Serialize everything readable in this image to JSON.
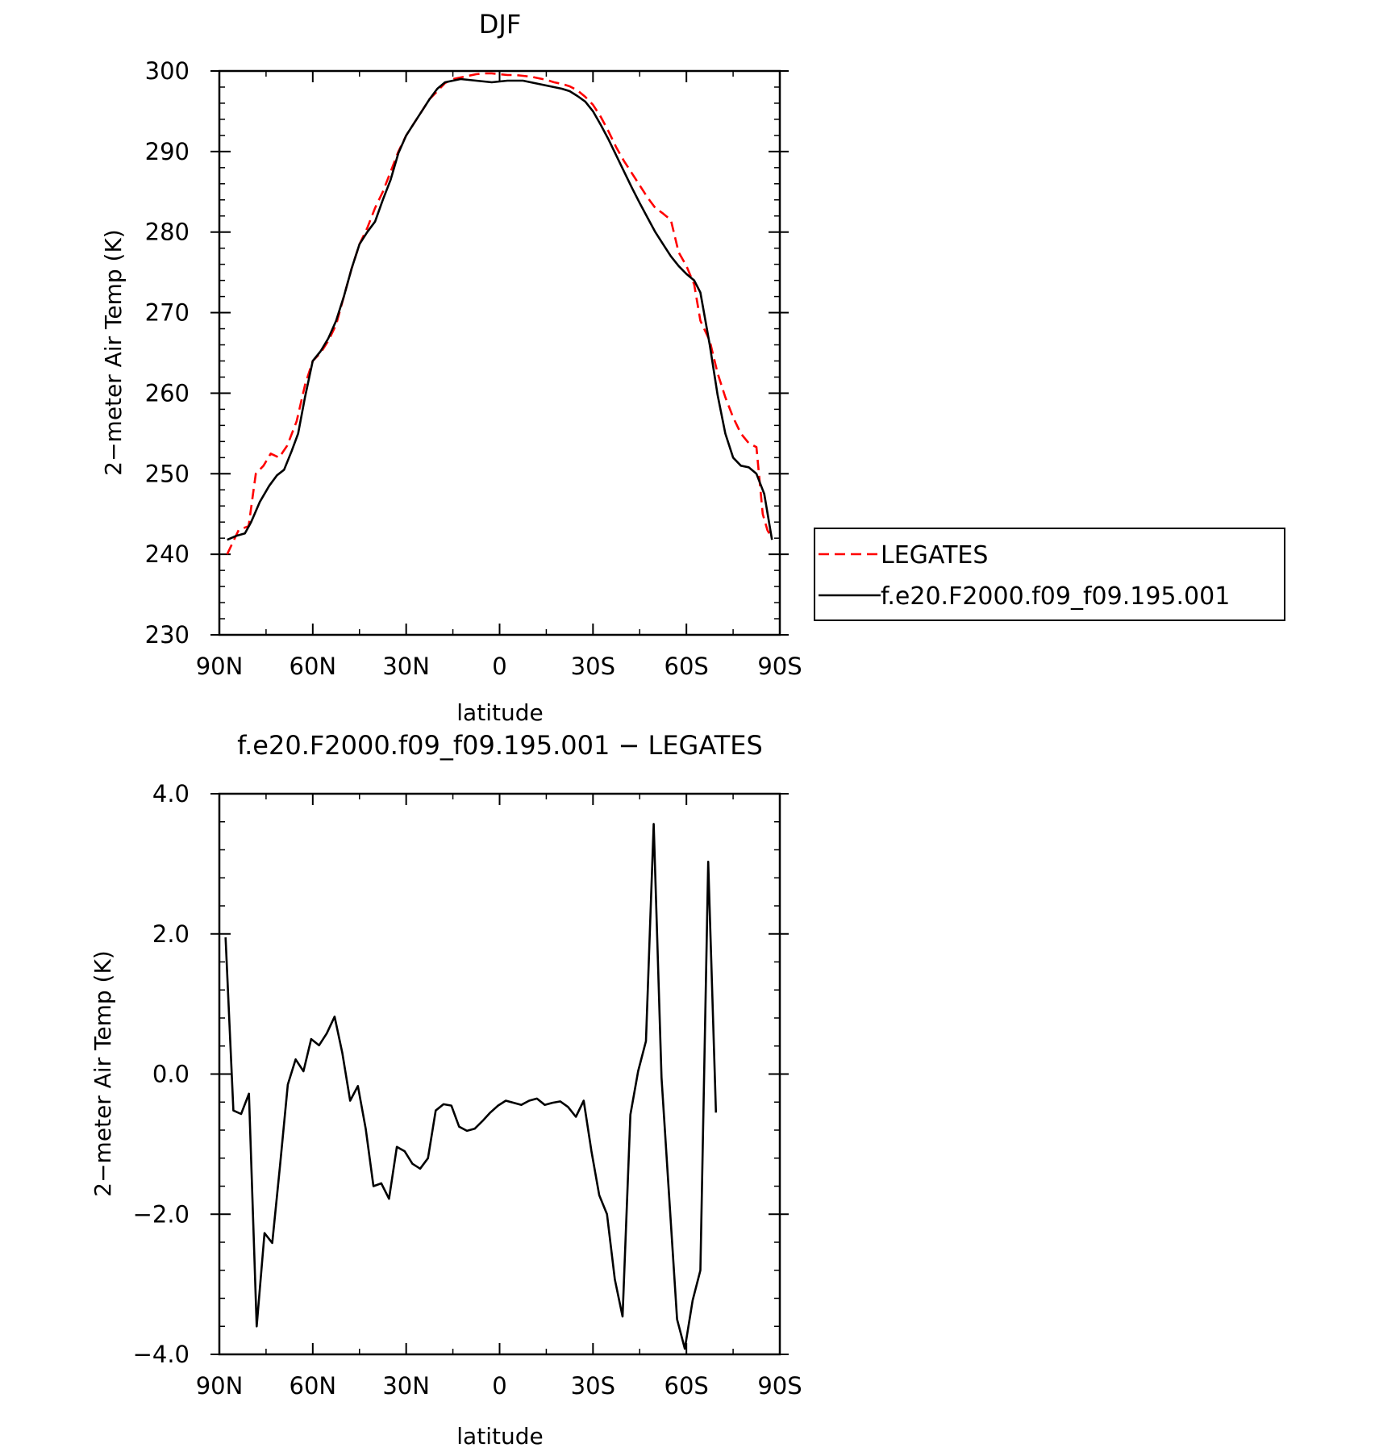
{
  "chart_data": [
    {
      "type": "line",
      "title": "DJF",
      "xlabel": "latitude",
      "ylabel": "2−meter Air Temp (K)",
      "xlim": [
        90,
        -90
      ],
      "ylim": [
        230,
        300
      ],
      "x_tick_values": [
        90,
        60,
        30,
        0,
        -30,
        -60,
        -90
      ],
      "x_tick_labels": [
        "90N",
        "60N",
        "30N",
        "0",
        "30S",
        "60S",
        "90S"
      ],
      "y_tick_values": [
        230,
        240,
        250,
        260,
        270,
        280,
        290,
        300
      ],
      "y_tick_labels": [
        "230",
        "240",
        "250",
        "260",
        "270",
        "280",
        "290",
        "300"
      ],
      "grid": false,
      "legend_position": "right",
      "series": [
        {
          "name": "LEGATES",
          "color": "#ff0000",
          "dash": "dashed",
          "points": [
            [
              87.5,
              240.0
            ],
            [
              83.8,
              243.0
            ],
            [
              80.6,
              243.5
            ],
            [
              78.3,
              250.0
            ],
            [
              75.8,
              251.0
            ],
            [
              73.5,
              252.5
            ],
            [
              70.8,
              252.0
            ],
            [
              68.2,
              253.5
            ],
            [
              65.2,
              256.5
            ],
            [
              62.5,
              261.0
            ],
            [
              60.0,
              264.0
            ],
            [
              57.5,
              265.0
            ],
            [
              55.0,
              266.5
            ],
            [
              52.5,
              268.5
            ],
            [
              50.0,
              272.0
            ],
            [
              47.5,
              275.5
            ],
            [
              45.0,
              278.5
            ],
            [
              42.5,
              280.5
            ],
            [
              40.0,
              283.0
            ],
            [
              37.5,
              285.0
            ],
            [
              35.0,
              287.5
            ],
            [
              32.5,
              290.0
            ],
            [
              30.0,
              292.0
            ],
            [
              27.5,
              293.5
            ],
            [
              25.0,
              295.0
            ],
            [
              22.5,
              296.5
            ],
            [
              20.0,
              297.5
            ],
            [
              17.5,
              298.5
            ],
            [
              15.0,
              299.0
            ],
            [
              12.5,
              299.2
            ],
            [
              10.0,
              299.4
            ],
            [
              7.5,
              299.6
            ],
            [
              5.0,
              299.7
            ],
            [
              2.5,
              299.7
            ],
            [
              0.0,
              299.6
            ],
            [
              -2.5,
              299.5
            ],
            [
              -5.0,
              299.5
            ],
            [
              -7.5,
              299.4
            ],
            [
              -10.0,
              299.3
            ],
            [
              -12.5,
              299.1
            ],
            [
              -15.0,
              298.9
            ],
            [
              -17.5,
              298.6
            ],
            [
              -20.0,
              298.4
            ],
            [
              -22.5,
              298.1
            ],
            [
              -25.0,
              297.6
            ],
            [
              -27.5,
              296.8
            ],
            [
              -30.0,
              295.8
            ],
            [
              -32.5,
              294.3
            ],
            [
              -35.0,
              292.5
            ],
            [
              -37.5,
              290.5
            ],
            [
              -40.0,
              288.8
            ],
            [
              -42.5,
              287.3
            ],
            [
              -45.0,
              285.8
            ],
            [
              -47.5,
              284.3
            ],
            [
              -50.0,
              283.0
            ],
            [
              -52.5,
              282.3
            ],
            [
              -55.0,
              281.5
            ],
            [
              -57.5,
              277.5
            ],
            [
              -60.0,
              275.8
            ],
            [
              -62.5,
              273.5
            ],
            [
              -64.5,
              269.0
            ],
            [
              -67.5,
              266.5
            ],
            [
              -70.0,
              262.5
            ],
            [
              -72.5,
              259.5
            ],
            [
              -75.0,
              257.0
            ],
            [
              -77.5,
              255.0
            ],
            [
              -80.0,
              253.8
            ],
            [
              -82.5,
              253.3
            ],
            [
              -84.5,
              245.0
            ],
            [
              -86.0,
              243.0
            ],
            [
              -87.5,
              242.0
            ]
          ]
        },
        {
          "name": "f.e20.F2000.f09_f09.195.001",
          "color": "#000000",
          "dash": "solid",
          "points": [
            [
              87.5,
              241.8
            ],
            [
              84.5,
              242.3
            ],
            [
              81.8,
              242.6
            ],
            [
              79.8,
              244.0
            ],
            [
              77.0,
              246.5
            ],
            [
              74.0,
              248.5
            ],
            [
              71.5,
              249.8
            ],
            [
              69.2,
              250.5
            ],
            [
              66.8,
              252.8
            ],
            [
              64.7,
              255.0
            ],
            [
              62.5,
              259.5
            ],
            [
              60.0,
              264.0
            ],
            [
              57.5,
              265.2
            ],
            [
              55.0,
              266.8
            ],
            [
              52.5,
              269.0
            ],
            [
              50.0,
              272.0
            ],
            [
              47.5,
              275.5
            ],
            [
              45.0,
              278.5
            ],
            [
              42.5,
              280.0
            ],
            [
              40.0,
              281.3
            ],
            [
              37.5,
              284.0
            ],
            [
              35.0,
              286.5
            ],
            [
              32.5,
              289.8
            ],
            [
              30.0,
              292.0
            ],
            [
              27.5,
              293.5
            ],
            [
              25.0,
              295.0
            ],
            [
              22.5,
              296.5
            ],
            [
              20.0,
              297.8
            ],
            [
              17.5,
              298.6
            ],
            [
              15.0,
              298.8
            ],
            [
              12.5,
              299.0
            ],
            [
              10.0,
              298.9
            ],
            [
              7.5,
              298.8
            ],
            [
              5.0,
              298.7
            ],
            [
              2.5,
              298.6
            ],
            [
              0.0,
              298.7
            ],
            [
              -2.5,
              298.8
            ],
            [
              -5.0,
              298.8
            ],
            [
              -7.5,
              298.8
            ],
            [
              -10.0,
              298.6
            ],
            [
              -12.5,
              298.4
            ],
            [
              -15.0,
              298.2
            ],
            [
              -17.5,
              298.0
            ],
            [
              -20.0,
              297.8
            ],
            [
              -22.5,
              297.5
            ],
            [
              -25.0,
              296.9
            ],
            [
              -27.5,
              296.2
            ],
            [
              -30.0,
              295.0
            ],
            [
              -32.5,
              293.3
            ],
            [
              -35.0,
              291.5
            ],
            [
              -37.5,
              289.5
            ],
            [
              -40.0,
              287.5
            ],
            [
              -42.5,
              285.5
            ],
            [
              -45.0,
              283.6
            ],
            [
              -47.5,
              281.8
            ],
            [
              -50.0,
              280.0
            ],
            [
              -52.5,
              278.5
            ],
            [
              -55.0,
              277.0
            ],
            [
              -57.5,
              275.8
            ],
            [
              -60.0,
              274.8
            ],
            [
              -62.5,
              274.0
            ],
            [
              -64.5,
              272.5
            ],
            [
              -67.5,
              266.0
            ],
            [
              -70.0,
              259.8
            ],
            [
              -72.5,
              255.0
            ],
            [
              -75.0,
              252.0
            ],
            [
              -77.5,
              251.0
            ],
            [
              -80.0,
              250.8
            ],
            [
              -82.5,
              250.0
            ],
            [
              -85.0,
              247.5
            ],
            [
              -87.5,
              241.8
            ]
          ]
        }
      ]
    },
    {
      "type": "line",
      "title": "f.e20.F2000.f09_f09.195.001 − LEGATES",
      "xlabel": "latitude",
      "ylabel": "2−meter Air Temp (K)",
      "xlim": [
        90,
        -90
      ],
      "ylim": [
        -4.0,
        4.0
      ],
      "x_tick_values": [
        90,
        60,
        30,
        0,
        -30,
        -60,
        -90
      ],
      "x_tick_labels": [
        "90N",
        "60N",
        "30N",
        "0",
        "30S",
        "60S",
        "90S"
      ],
      "y_tick_values": [
        -4,
        -2,
        0,
        2,
        4
      ],
      "y_tick_labels": [
        "−4.0",
        "−2.0",
        "0.0",
        "2.0",
        "4.0"
      ],
      "grid": false,
      "series": [
        {
          "color": "#000000",
          "dash": "solid",
          "points": [
            [
              88.0,
              1.95
            ],
            [
              85.5,
              -0.52
            ],
            [
              83.0,
              -0.57
            ],
            [
              80.5,
              -0.28
            ],
            [
              78.0,
              -3.6
            ],
            [
              75.5,
              -2.27
            ],
            [
              73.0,
              -2.41
            ],
            [
              70.5,
              -1.3
            ],
            [
              68.0,
              -0.15
            ],
            [
              65.5,
              0.21
            ],
            [
              63.0,
              0.04
            ],
            [
              60.5,
              0.5
            ],
            [
              58.0,
              0.41
            ],
            [
              55.5,
              0.58
            ],
            [
              53.0,
              0.82
            ],
            [
              50.5,
              0.3
            ],
            [
              48.0,
              -0.38
            ],
            [
              45.5,
              -0.17
            ],
            [
              43.0,
              -0.78
            ],
            [
              40.5,
              -1.6
            ],
            [
              38.0,
              -1.56
            ],
            [
              35.5,
              -1.78
            ],
            [
              33.0,
              -1.04
            ],
            [
              30.5,
              -1.1
            ],
            [
              28.0,
              -1.28
            ],
            [
              25.5,
              -1.35
            ],
            [
              23.0,
              -1.2
            ],
            [
              20.5,
              -0.52
            ],
            [
              18.0,
              -0.43
            ],
            [
              15.5,
              -0.45
            ],
            [
              13.0,
              -0.75
            ],
            [
              10.5,
              -0.81
            ],
            [
              8.0,
              -0.78
            ],
            [
              5.5,
              -0.67
            ],
            [
              3.0,
              -0.55
            ],
            [
              0.5,
              -0.45
            ],
            [
              -2.0,
              -0.38
            ],
            [
              -4.5,
              -0.41
            ],
            [
              -7.0,
              -0.44
            ],
            [
              -9.5,
              -0.38
            ],
            [
              -12.0,
              -0.35
            ],
            [
              -14.5,
              -0.44
            ],
            [
              -17.0,
              -0.41
            ],
            [
              -19.5,
              -0.39
            ],
            [
              -22.0,
              -0.47
            ],
            [
              -24.5,
              -0.61
            ],
            [
              -27.0,
              -0.38
            ],
            [
              -29.5,
              -1.1
            ],
            [
              -32.0,
              -1.73
            ],
            [
              -34.5,
              -2.0
            ],
            [
              -37.0,
              -2.93
            ],
            [
              -39.5,
              -3.46
            ],
            [
              -42.0,
              -0.58
            ],
            [
              -44.5,
              0.04
            ],
            [
              -47.0,
              0.47
            ],
            [
              -49.5,
              3.57
            ],
            [
              -52.0,
              -0.05
            ],
            [
              -54.5,
              -1.77
            ],
            [
              -57.0,
              -3.5
            ],
            [
              -59.5,
              -3.92
            ],
            [
              -62.0,
              -3.23
            ],
            [
              -64.5,
              -2.8
            ],
            [
              -67.0,
              3.03
            ],
            [
              -69.5,
              -0.55
            ]
          ]
        }
      ]
    }
  ]
}
